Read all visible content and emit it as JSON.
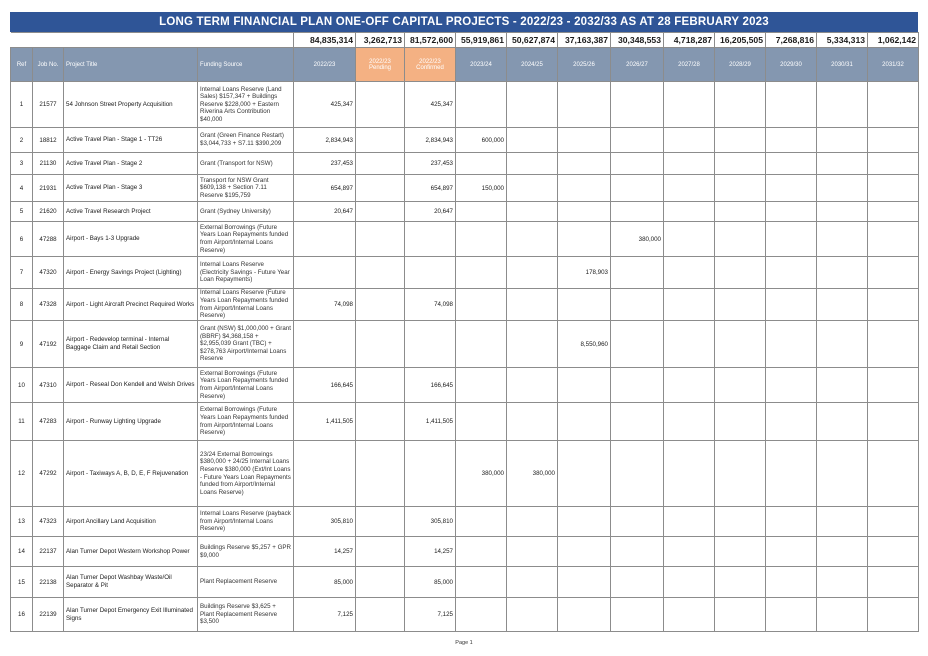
{
  "title": "LONG TERM FINANCIAL PLAN ONE-OFF CAPITAL PROJECTS - 2022/23 - 2032/33 AS AT 28 FEBRUARY 2023",
  "totals": [
    "84,835,314",
    "3,262,713",
    "81,572,600",
    "55,919,861",
    "50,627,874",
    "37,163,387",
    "30,348,553",
    "4,718,287",
    "16,205,505",
    "7,268,816",
    "5,334,313",
    "1,062,142"
  ],
  "headers": {
    "ref": "Ref",
    "job": "Job No.",
    "project": "Project Title",
    "funding": "Funding Source",
    "y2022": "2022/23",
    "y2022_pending_1": "2022/23",
    "y2022_pending_2": "Pending",
    "y2022_confirmed_1": "2022/23",
    "y2022_confirmed_2": "Confirmed",
    "y2023": "2023/24",
    "y2024": "2024/25",
    "y2025": "2025/26",
    "y2026": "2026/27",
    "y2027": "2027/28",
    "y2028": "2028/29",
    "y2029": "2029/30",
    "y2030": "2030/31",
    "y2031": "2031/32"
  },
  "rows": [
    {
      "ref": "1",
      "job": "21577",
      "title": "54 Johnson Street Property Acquisition",
      "funding": "Internal Loans Reserve (Land Sales) $157,347 + Buildings Reserve $228,000 + Eastern Riverina Arts Contribution $40,000",
      "values": [
        "425,347",
        "",
        "425,347",
        "",
        "",
        "",
        "",
        "",
        "",
        "",
        "",
        ""
      ]
    },
    {
      "ref": "2",
      "job": "18812",
      "title": "Active Travel Plan - Stage 1 - TT26",
      "funding": "Grant (Green Finance Restart) $3,044,733 + S7.11 $390,209",
      "values": [
        "2,834,943",
        "",
        "2,834,943",
        "600,000",
        "",
        "",
        "",
        "",
        "",
        "",
        "",
        ""
      ]
    },
    {
      "ref": "3",
      "job": "21130",
      "title": "Active Travel Plan - Stage 2",
      "funding": "Grant (Transport for NSW)",
      "values": [
        "237,453",
        "",
        "237,453",
        "",
        "",
        "",
        "",
        "",
        "",
        "",
        "",
        ""
      ]
    },
    {
      "ref": "4",
      "job": "21931",
      "title": "Active Travel Plan - Stage 3",
      "funding": "Transport for NSW Grant $609,138 + Section 7.11 Reserve $195,759",
      "values": [
        "654,897",
        "",
        "654,897",
        "150,000",
        "",
        "",
        "",
        "",
        "",
        "",
        "",
        ""
      ]
    },
    {
      "ref": "5",
      "job": "21620",
      "title": "Active Travel Research Project",
      "funding": "Grant (Sydney University)",
      "values": [
        "20,647",
        "",
        "20,647",
        "",
        "",
        "",
        "",
        "",
        "",
        "",
        "",
        ""
      ]
    },
    {
      "ref": "6",
      "job": "47288",
      "title": "Airport - Bays 1-3 Upgrade",
      "funding": "External Borrowings (Future Years Loan Repayments funded from Airport/Internal Loans Reserve)",
      "values": [
        "",
        "",
        "",
        "",
        "",
        "",
        "380,000",
        "",
        "",
        "",
        "",
        ""
      ]
    },
    {
      "ref": "7",
      "job": "47320",
      "title": "Airport - Energy Savings Project (Lighting)",
      "funding": "Internal Loans Reserve (Electricity Savings - Future Year Loan Repayments)",
      "values": [
        "",
        "",
        "",
        "",
        "",
        "178,903",
        "",
        "",
        "",
        "",
        "",
        ""
      ]
    },
    {
      "ref": "8",
      "job": "47328",
      "title": "Airport - Light Aircraft Precinct Required Works",
      "funding": "Internal Loans Reserve (Future Years Loan Repayments funded from Airport/Internal Loans Reserve)",
      "values": [
        "74,098",
        "",
        "74,098",
        "",
        "",
        "",
        "",
        "",
        "",
        "",
        "",
        ""
      ]
    },
    {
      "ref": "9",
      "job": "47192",
      "title": "Airport - Redevelop terminal - Internal Baggage Claim and Retail Section",
      "funding": "Grant (NSW) $1,000,000 + Grant (BBRF) $4,368,158 + $2,955,039 Grant (TBC) + $278,763 Airport/Internal Loans Reserve",
      "values": [
        "",
        "",
        "",
        "",
        "",
        "8,550,960",
        "",
        "",
        "",
        "",
        "",
        ""
      ]
    },
    {
      "ref": "10",
      "job": "47310",
      "title": "Airport - Reseal Don Kendell and Welsh Drives",
      "funding": "External Borrowings (Future Years Loan Repayments funded from Airport/Internal Loans Reserve)",
      "values": [
        "166,645",
        "",
        "166,645",
        "",
        "",
        "",
        "",
        "",
        "",
        "",
        "",
        ""
      ]
    },
    {
      "ref": "11",
      "job": "47283",
      "title": "Airport - Runway Lighting Upgrade",
      "funding": "External Borrowings (Future Years Loan Repayments funded from Airport/Internal Loans Reserve)",
      "values": [
        "1,411,505",
        "",
        "1,411,505",
        "",
        "",
        "",
        "",
        "",
        "",
        "",
        "",
        ""
      ]
    },
    {
      "ref": "12",
      "job": "47292",
      "title": "Airport - Taxiways A, B, D, E, F Rejuvenation",
      "funding": "23/24 External Borrowings $380,000 + 24/25 Internal Loans Reserve $380,000 (Ext/Int Loans - Future Years Loan Repayments funded from Airport/Internal Loans Reserve)",
      "values": [
        "",
        "",
        "",
        "380,000",
        "380,000",
        "",
        "",
        "",
        "",
        "",
        "",
        ""
      ]
    },
    {
      "ref": "13",
      "job": "47323",
      "title": "Airport Ancillary Land Acquisition",
      "funding": "Internal Loans Reserve (payback from Airport/Internal Loans Reserve)",
      "values": [
        "305,810",
        "",
        "305,810",
        "",
        "",
        "",
        "",
        "",
        "",
        "",
        "",
        ""
      ]
    },
    {
      "ref": "14",
      "job": "22137",
      "title": "Alan Turner Depot Western Workshop Power",
      "funding": "Buildings Reserve $5,257 + GPR $9,000",
      "values": [
        "14,257",
        "",
        "14,257",
        "",
        "",
        "",
        "",
        "",
        "",
        "",
        "",
        ""
      ]
    },
    {
      "ref": "15",
      "job": "22138",
      "title": "Alan Turner Depot Washbay Waste/Oil Separator & Pit",
      "funding": "Plant Replacement Reserve",
      "values": [
        "85,000",
        "",
        "85,000",
        "",
        "",
        "",
        "",
        "",
        "",
        "",
        "",
        ""
      ]
    },
    {
      "ref": "16",
      "job": "22139",
      "title": "Alan Turner Depot Emergency Exit Illuminated Signs",
      "funding": "Buildings Reserve $3,625 + Plant Replacement Reserve $3,500",
      "values": [
        "7,125",
        "",
        "7,125",
        "",
        "",
        "",
        "",
        "",
        "",
        "",
        "",
        ""
      ]
    }
  ],
  "footer": "Page 1",
  "colors": {
    "title_bg": "#2f5597",
    "header_bg": "#8497b0",
    "pending_bg": "#f4b183"
  }
}
